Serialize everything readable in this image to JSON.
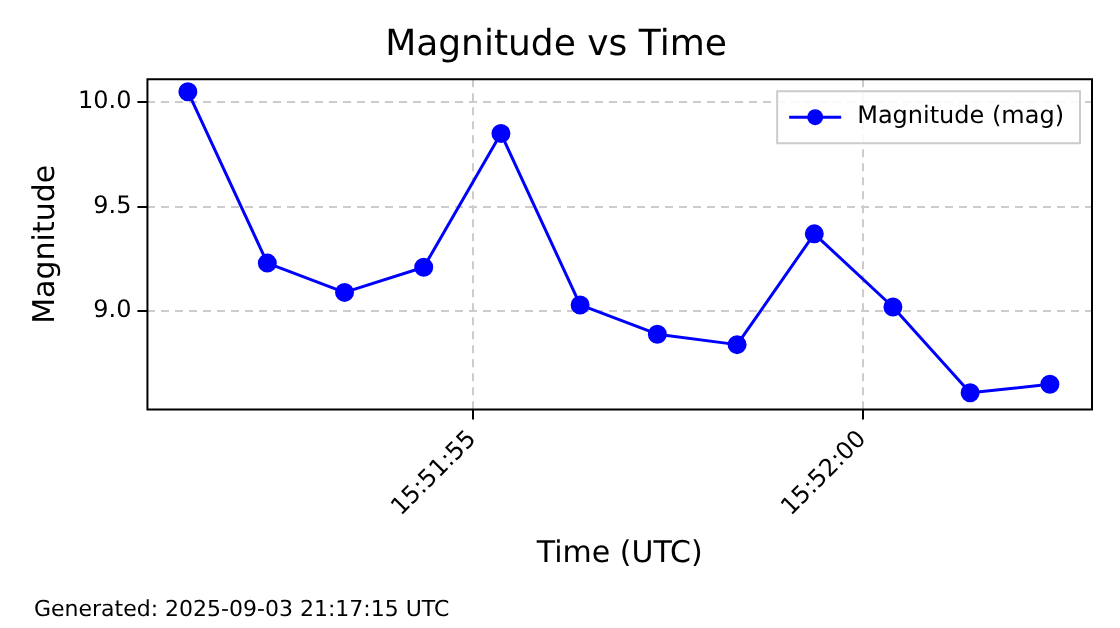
{
  "chart_data": {
    "type": "line",
    "title": "Magnitude vs Time",
    "xlabel": "Time (UTC)",
    "ylabel": "Magnitude",
    "annotations": [
      "Generated: 2025-09-03 21:17:15 UTC"
    ],
    "x": [
      15.864264,
      15.864547,
      15.864822,
      15.865104,
      15.865379,
      15.865661,
      15.865936,
      15.86622,
      15.866495,
      15.866775,
      15.86705,
      15.867334
    ],
    "series": [
      {
        "name": "Magnitude (mag)",
        "color": "#0000ff",
        "values": [
          10.05,
          9.23,
          9.09,
          9.21,
          9.85,
          9.03,
          8.89,
          8.84,
          9.37,
          9.02,
          8.61,
          8.65
        ]
      }
    ],
    "xlim": [
      15.86412,
      15.867484
    ],
    "xticks": [
      {
        "value": 15.865278,
        "label": "15:51:55"
      },
      {
        "value": 15.866667,
        "label": "15:52:00"
      }
    ],
    "ylim": [
      8.53,
      10.11
    ],
    "yticks": [
      {
        "value": 9,
        "label": "9.0"
      },
      {
        "value": 9.5,
        "label": "9.5"
      },
      {
        "value": 10,
        "label": "10.0"
      }
    ],
    "grid": true,
    "legend": "top right",
    "marker": "circle",
    "line_style": "solid"
  }
}
